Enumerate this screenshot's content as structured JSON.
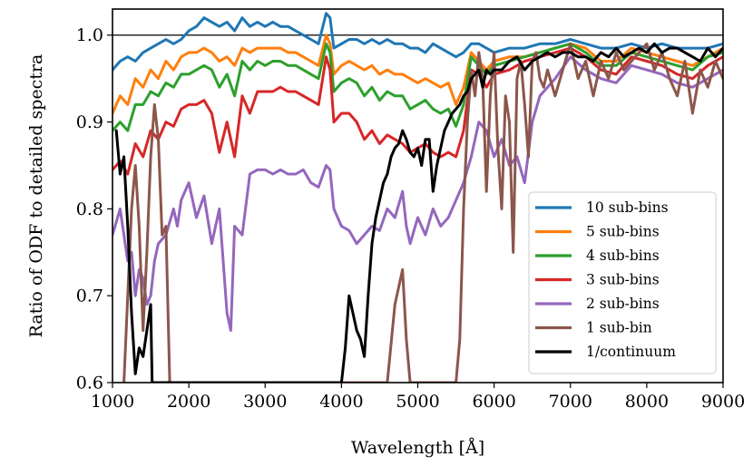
{
  "chart_data": {
    "type": "line",
    "title": "",
    "xlabel": "Wavelength [Å]",
    "ylabel": "Ratio of ODF to detailed spectra",
    "xlim": [
      1000,
      9000
    ],
    "ylim": [
      0.6,
      1.03
    ],
    "xticks": [
      1000,
      2000,
      3000,
      4000,
      5000,
      6000,
      7000,
      8000,
      9000
    ],
    "xtick_labels": [
      "1000",
      "2000",
      "3000",
      "4000",
      "5000",
      "6000",
      "7000",
      "8000",
      "9000"
    ],
    "yticks": [
      0.6,
      0.7,
      0.8,
      0.9,
      1.0
    ],
    "ytick_labels": [
      "0.6",
      "0.7",
      "0.8",
      "0.9",
      "1.0"
    ],
    "reference_line": 1.0,
    "legend_position": "lower-right",
    "series": [
      {
        "name": "10 sub-bins",
        "color": "#1f77b4",
        "x": [
          1000,
          1100,
          1200,
          1300,
          1400,
          1500,
          1600,
          1700,
          1800,
          1900,
          2000,
          2100,
          2200,
          2300,
          2400,
          2500,
          2600,
          2700,
          2800,
          2900,
          3000,
          3100,
          3200,
          3300,
          3400,
          3500,
          3600,
          3700,
          3800,
          3850,
          3900,
          4000,
          4100,
          4200,
          4300,
          4400,
          4500,
          4600,
          4700,
          4800,
          4900,
          5000,
          5100,
          5200,
          5300,
          5400,
          5500,
          5600,
          5700,
          5800,
          5900,
          6000,
          6200,
          6400,
          6600,
          6800,
          7000,
          7200,
          7400,
          7600,
          7800,
          8000,
          8200,
          8400,
          8600,
          8800,
          9000
        ],
        "y": [
          0.96,
          0.97,
          0.975,
          0.97,
          0.98,
          0.985,
          0.99,
          0.995,
          0.99,
          0.995,
          1.005,
          1.01,
          1.02,
          1.015,
          1.01,
          1.015,
          1.005,
          1.02,
          1.01,
          1.015,
          1.01,
          1.015,
          1.01,
          1.01,
          1.005,
          1.0,
          0.995,
          0.99,
          1.025,
          1.02,
          0.985,
          0.99,
          0.995,
          0.995,
          0.99,
          0.995,
          0.99,
          0.995,
          0.99,
          0.99,
          0.985,
          0.985,
          0.98,
          0.99,
          0.985,
          0.98,
          0.975,
          0.98,
          0.99,
          0.99,
          0.985,
          0.98,
          0.985,
          0.985,
          0.99,
          0.99,
          0.995,
          0.99,
          0.985,
          0.985,
          0.99,
          0.985,
          0.99,
          0.985,
          0.985,
          0.985,
          0.99
        ]
      },
      {
        "name": "5 sub-bins",
        "color": "#ff7f0e",
        "x": [
          1000,
          1100,
          1200,
          1300,
          1400,
          1500,
          1600,
          1700,
          1800,
          1900,
          2000,
          2100,
          2200,
          2300,
          2400,
          2500,
          2600,
          2700,
          2800,
          2900,
          3000,
          3100,
          3200,
          3300,
          3400,
          3500,
          3600,
          3700,
          3800,
          3850,
          3900,
          4000,
          4100,
          4200,
          4300,
          4400,
          4500,
          4600,
          4700,
          4800,
          4900,
          5000,
          5100,
          5200,
          5300,
          5400,
          5500,
          5600,
          5700,
          5800,
          5900,
          6000,
          6200,
          6400,
          6600,
          6800,
          7000,
          7200,
          7400,
          7600,
          7800,
          8000,
          8200,
          8400,
          8600,
          8800,
          9000
        ],
        "y": [
          0.91,
          0.93,
          0.92,
          0.95,
          0.94,
          0.96,
          0.95,
          0.97,
          0.96,
          0.975,
          0.98,
          0.98,
          0.985,
          0.98,
          0.97,
          0.975,
          0.965,
          0.985,
          0.98,
          0.985,
          0.985,
          0.985,
          0.985,
          0.98,
          0.98,
          0.975,
          0.97,
          0.965,
          1.0,
          0.99,
          0.955,
          0.965,
          0.97,
          0.965,
          0.96,
          0.965,
          0.955,
          0.96,
          0.955,
          0.955,
          0.95,
          0.945,
          0.95,
          0.945,
          0.94,
          0.945,
          0.92,
          0.94,
          0.98,
          0.97,
          0.96,
          0.97,
          0.975,
          0.975,
          0.98,
          0.985,
          0.99,
          0.985,
          0.97,
          0.97,
          0.985,
          0.98,
          0.975,
          0.97,
          0.965,
          0.975,
          0.985
        ]
      },
      {
        "name": "4 sub-bins",
        "color": "#2ca02c",
        "x": [
          1000,
          1100,
          1200,
          1300,
          1400,
          1500,
          1600,
          1700,
          1800,
          1900,
          2000,
          2100,
          2200,
          2300,
          2400,
          2500,
          2600,
          2700,
          2800,
          2900,
          3000,
          3100,
          3200,
          3300,
          3400,
          3500,
          3600,
          3700,
          3800,
          3850,
          3900,
          4000,
          4100,
          4200,
          4300,
          4400,
          4500,
          4600,
          4700,
          4800,
          4900,
          5000,
          5100,
          5200,
          5300,
          5400,
          5500,
          5600,
          5700,
          5800,
          5900,
          6000,
          6200,
          6400,
          6600,
          6800,
          7000,
          7200,
          7400,
          7600,
          7800,
          8000,
          8200,
          8400,
          8600,
          8800,
          9000
        ],
        "y": [
          0.89,
          0.9,
          0.89,
          0.92,
          0.92,
          0.935,
          0.93,
          0.945,
          0.94,
          0.955,
          0.955,
          0.96,
          0.965,
          0.96,
          0.94,
          0.955,
          0.93,
          0.97,
          0.96,
          0.97,
          0.965,
          0.97,
          0.97,
          0.965,
          0.965,
          0.96,
          0.955,
          0.95,
          0.99,
          0.98,
          0.935,
          0.945,
          0.95,
          0.945,
          0.93,
          0.94,
          0.925,
          0.935,
          0.93,
          0.93,
          0.915,
          0.92,
          0.925,
          0.915,
          0.91,
          0.915,
          0.895,
          0.92,
          0.975,
          0.965,
          0.955,
          0.965,
          0.97,
          0.975,
          0.98,
          0.985,
          0.99,
          0.98,
          0.965,
          0.965,
          0.98,
          0.975,
          0.97,
          0.965,
          0.96,
          0.975,
          0.98
        ]
      },
      {
        "name": "3 sub-bins",
        "color": "#d62728",
        "x": [
          1000,
          1100,
          1200,
          1300,
          1400,
          1500,
          1600,
          1700,
          1800,
          1900,
          2000,
          2100,
          2200,
          2300,
          2400,
          2500,
          2600,
          2700,
          2800,
          2900,
          3000,
          3100,
          3200,
          3300,
          3400,
          3500,
          3600,
          3700,
          3800,
          3850,
          3900,
          4000,
          4100,
          4200,
          4300,
          4400,
          4500,
          4600,
          4700,
          4800,
          4900,
          5000,
          5100,
          5200,
          5300,
          5400,
          5500,
          5600,
          5700,
          5800,
          5900,
          6000,
          6200,
          6400,
          6600,
          6800,
          7000,
          7200,
          7400,
          7600,
          7800,
          8000,
          8200,
          8400,
          8600,
          8800,
          9000
        ],
        "y": [
          0.845,
          0.855,
          0.84,
          0.875,
          0.86,
          0.89,
          0.88,
          0.9,
          0.895,
          0.915,
          0.92,
          0.92,
          0.925,
          0.91,
          0.865,
          0.9,
          0.86,
          0.93,
          0.91,
          0.935,
          0.935,
          0.935,
          0.94,
          0.935,
          0.935,
          0.93,
          0.925,
          0.92,
          0.975,
          0.96,
          0.9,
          0.91,
          0.91,
          0.9,
          0.88,
          0.89,
          0.875,
          0.885,
          0.88,
          0.875,
          0.865,
          0.87,
          0.875,
          0.865,
          0.86,
          0.865,
          0.86,
          0.89,
          0.96,
          0.955,
          0.94,
          0.955,
          0.96,
          0.97,
          0.975,
          0.98,
          0.985,
          0.975,
          0.96,
          0.955,
          0.975,
          0.97,
          0.965,
          0.955,
          0.95,
          0.965,
          0.975
        ]
      },
      {
        "name": "2 sub-bins",
        "color": "#9467bd",
        "x": [
          1000,
          1100,
          1200,
          1250,
          1300,
          1350,
          1400,
          1450,
          1500,
          1550,
          1600,
          1700,
          1800,
          1850,
          1900,
          2000,
          2100,
          2200,
          2300,
          2400,
          2500,
          2550,
          2600,
          2700,
          2800,
          2900,
          3000,
          3100,
          3200,
          3300,
          3400,
          3500,
          3600,
          3700,
          3800,
          3850,
          3900,
          4000,
          4100,
          4200,
          4300,
          4400,
          4500,
          4600,
          4700,
          4800,
          4850,
          4900,
          5000,
          5100,
          5200,
          5300,
          5400,
          5500,
          5600,
          5700,
          5800,
          5900,
          6000,
          6100,
          6200,
          6300,
          6400,
          6500,
          6600,
          6800,
          7000,
          7200,
          7400,
          7600,
          7800,
          8000,
          8200,
          8400,
          8600,
          8800,
          9000
        ],
        "y": [
          0.77,
          0.8,
          0.74,
          0.75,
          0.7,
          0.73,
          0.72,
          0.69,
          0.7,
          0.74,
          0.76,
          0.77,
          0.8,
          0.78,
          0.81,
          0.83,
          0.79,
          0.815,
          0.76,
          0.8,
          0.68,
          0.66,
          0.78,
          0.77,
          0.84,
          0.845,
          0.845,
          0.84,
          0.845,
          0.84,
          0.84,
          0.845,
          0.83,
          0.825,
          0.85,
          0.845,
          0.8,
          0.78,
          0.775,
          0.76,
          0.77,
          0.78,
          0.775,
          0.8,
          0.79,
          0.82,
          0.78,
          0.76,
          0.79,
          0.77,
          0.8,
          0.78,
          0.79,
          0.81,
          0.83,
          0.86,
          0.9,
          0.89,
          0.86,
          0.88,
          0.85,
          0.86,
          0.83,
          0.9,
          0.93,
          0.95,
          0.975,
          0.96,
          0.95,
          0.945,
          0.965,
          0.96,
          0.955,
          0.945,
          0.94,
          0.95,
          0.96
        ]
      },
      {
        "name": "1 sub-bin",
        "color": "#8c564b",
        "x": [
          1150,
          1200,
          1250,
          1300,
          1350,
          1400,
          1450,
          1500,
          1550,
          1600,
          1650,
          1700,
          1750,
          4600,
          4700,
          4800,
          4850,
          4900,
          5000,
          5100,
          5200,
          5300,
          5400,
          5500,
          5550,
          5600,
          5650,
          5700,
          5750,
          5800,
          5850,
          5900,
          5950,
          6000,
          6050,
          6100,
          6150,
          6200,
          6250,
          6300,
          6350,
          6400,
          6450,
          6500,
          6550,
          6600,
          6650,
          6700,
          6800,
          6900,
          7000,
          7100,
          7200,
          7300,
          7400,
          7500,
          7600,
          7700,
          7800,
          7900,
          8000,
          8100,
          8200,
          8300,
          8400,
          8500,
          8600,
          8700,
          8800,
          8900,
          9000
        ],
        "y": [
          0.6,
          0.7,
          0.8,
          0.85,
          0.78,
          0.66,
          0.75,
          0.86,
          0.92,
          0.88,
          0.77,
          0.78,
          0.6,
          0.6,
          0.69,
          0.73,
          0.65,
          0.6,
          0.6,
          0.6,
          0.6,
          0.6,
          0.6,
          0.6,
          0.65,
          0.8,
          0.9,
          0.96,
          0.93,
          0.98,
          0.95,
          0.82,
          0.93,
          0.98,
          0.87,
          0.8,
          0.93,
          0.9,
          0.75,
          0.95,
          0.97,
          0.92,
          0.86,
          0.97,
          0.98,
          0.95,
          0.94,
          0.96,
          0.93,
          0.96,
          0.99,
          0.95,
          0.97,
          0.93,
          0.97,
          0.95,
          0.98,
          0.96,
          0.97,
          0.98,
          0.99,
          0.96,
          0.98,
          0.95,
          0.93,
          0.97,
          0.91,
          0.96,
          0.94,
          0.97,
          0.95
        ]
      },
      {
        "name": "1/continuum",
        "color": "#000000",
        "x": [
          1050,
          1100,
          1150,
          1200,
          1250,
          1300,
          1350,
          1400,
          1450,
          1500,
          1520,
          4000,
          4050,
          4100,
          4150,
          4200,
          4250,
          4300,
          4350,
          4400,
          4450,
          4500,
          4550,
          4600,
          4650,
          4700,
          4750,
          4800,
          4850,
          4900,
          4950,
          5000,
          5050,
          5100,
          5150,
          5200,
          5250,
          5300,
          5350,
          5400,
          5450,
          5500,
          5550,
          5600,
          5650,
          5700,
          5750,
          5800,
          5850,
          5900,
          5950,
          6000,
          6100,
          6200,
          6300,
          6400,
          6500,
          6600,
          6700,
          6800,
          6900,
          7000,
          7100,
          7200,
          7300,
          7400,
          7500,
          7600,
          7700,
          7800,
          7900,
          8000,
          8100,
          8200,
          8300,
          8400,
          8500,
          8600,
          8700,
          8800,
          8900,
          9000
        ],
        "y": [
          0.89,
          0.84,
          0.86,
          0.78,
          0.68,
          0.61,
          0.64,
          0.63,
          0.66,
          0.69,
          0.6,
          0.6,
          0.64,
          0.7,
          0.68,
          0.66,
          0.65,
          0.63,
          0.7,
          0.76,
          0.79,
          0.81,
          0.83,
          0.84,
          0.86,
          0.87,
          0.875,
          0.89,
          0.88,
          0.865,
          0.86,
          0.87,
          0.85,
          0.88,
          0.88,
          0.82,
          0.85,
          0.87,
          0.89,
          0.9,
          0.91,
          0.915,
          0.92,
          0.93,
          0.935,
          0.95,
          0.955,
          0.96,
          0.94,
          0.96,
          0.955,
          0.96,
          0.96,
          0.97,
          0.975,
          0.96,
          0.97,
          0.975,
          0.98,
          0.975,
          0.98,
          0.98,
          0.975,
          0.975,
          0.97,
          0.98,
          0.975,
          0.985,
          0.975,
          0.98,
          0.985,
          0.98,
          0.99,
          0.98,
          0.985,
          0.985,
          0.98,
          0.975,
          0.97,
          0.985,
          0.975,
          0.985
        ]
      }
    ]
  }
}
